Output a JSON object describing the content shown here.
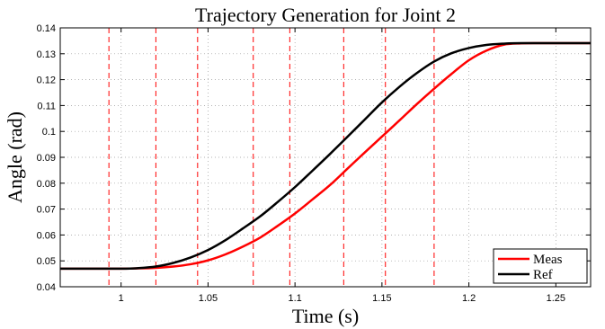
{
  "chart_data": {
    "type": "line",
    "title": "Trajectory Generation for Joint 2",
    "xlabel": "Time (s)",
    "ylabel": "Angle (rad)",
    "xlim": [
      0.965,
      1.27
    ],
    "ylim": [
      0.04,
      0.14
    ],
    "x_ticks": [
      1,
      1.05,
      1.1,
      1.15,
      1.2,
      1.25
    ],
    "x_tick_labels": [
      "1",
      "1.05",
      "1.1",
      "1.15",
      "1.2",
      "1.25"
    ],
    "y_ticks": [
      0.04,
      0.05,
      0.06,
      0.07,
      0.08,
      0.09,
      0.1,
      0.11,
      0.12,
      0.13,
      0.14
    ],
    "y_tick_labels": [
      "0.04",
      "0.05",
      "0.06",
      "0.07",
      "0.08",
      "0.09",
      "0.1",
      "0.11",
      "0.12",
      "0.13",
      "0.14"
    ],
    "grid": "dotted",
    "legend_position": "bottom-right",
    "vertical_markers": [
      0.993,
      1.02,
      1.044,
      1.076,
      1.097,
      1.128,
      1.152,
      1.18
    ],
    "series": [
      {
        "name": "Meas",
        "color": "#ff0000",
        "x": [
          0.965,
          1.0,
          1.02,
          1.03,
          1.04,
          1.05,
          1.06,
          1.07,
          1.08,
          1.09,
          1.1,
          1.11,
          1.12,
          1.13,
          1.14,
          1.15,
          1.16,
          1.17,
          1.18,
          1.19,
          1.2,
          1.21,
          1.22,
          1.23,
          1.24,
          1.27
        ],
        "y": [
          0.047,
          0.047,
          0.0473,
          0.0478,
          0.0487,
          0.0502,
          0.0525,
          0.0555,
          0.059,
          0.0635,
          0.0683,
          0.0737,
          0.0792,
          0.0855,
          0.0918,
          0.098,
          0.1042,
          0.1105,
          0.1165,
          0.1222,
          0.1275,
          0.1312,
          0.1335,
          0.134,
          0.1341,
          0.1341
        ]
      },
      {
        "name": "Ref",
        "color": "#000000",
        "x": [
          0.965,
          1.0,
          1.01,
          1.02,
          1.03,
          1.04,
          1.05,
          1.06,
          1.07,
          1.08,
          1.09,
          1.1,
          1.11,
          1.12,
          1.13,
          1.14,
          1.15,
          1.16,
          1.17,
          1.18,
          1.19,
          1.2,
          1.21,
          1.22,
          1.23,
          1.27
        ],
        "y": [
          0.047,
          0.047,
          0.0472,
          0.0478,
          0.0492,
          0.0513,
          0.0542,
          0.058,
          0.0625,
          0.0672,
          0.0727,
          0.0785,
          0.0848,
          0.0912,
          0.0978,
          0.1045,
          0.1112,
          0.1172,
          0.1225,
          0.127,
          0.1302,
          0.1322,
          0.1334,
          0.1339,
          0.1341,
          0.1341
        ]
      }
    ]
  }
}
